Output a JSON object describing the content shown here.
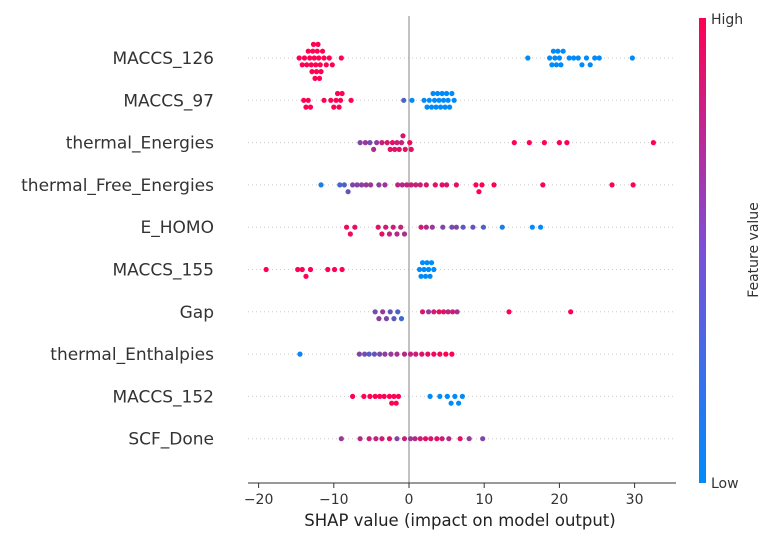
{
  "chart_data": {
    "type": "scatter",
    "subtype": "shap-beeswarm",
    "xlabel": "SHAP value (impact on model output)",
    "ylabel": "",
    "xlim": [
      -21.5,
      35.5
    ],
    "xticks": [
      -20,
      -10,
      0,
      10,
      20,
      30
    ],
    "zero_line": 0,
    "grid": "dotted horizontal row guides",
    "colorbar": {
      "title": "Feature value",
      "high_label": "High",
      "low_label": "Low",
      "low_color": "#008bfb",
      "high_color": "#ff0052"
    },
    "features": [
      {
        "name": "MACCS_126",
        "points": [
          {
            "x": -14.6,
            "c": 1
          },
          {
            "x": -14.2,
            "c": 1
          },
          {
            "x": -13.9,
            "c": 1
          },
          {
            "x": -13.6,
            "c": 1
          },
          {
            "x": -13.4,
            "c": 1
          },
          {
            "x": -13.2,
            "c": 1
          },
          {
            "x": -13.0,
            "c": 1
          },
          {
            "x": -12.9,
            "c": 1
          },
          {
            "x": -12.8,
            "c": 1
          },
          {
            "x": -12.7,
            "c": 1
          },
          {
            "x": -12.6,
            "c": 1
          },
          {
            "x": -12.5,
            "c": 1
          },
          {
            "x": -12.4,
            "c": 1
          },
          {
            "x": -12.3,
            "c": 1
          },
          {
            "x": -12.2,
            "c": 1
          },
          {
            "x": -12.1,
            "c": 1
          },
          {
            "x": -12.0,
            "c": 1
          },
          {
            "x": -11.9,
            "c": 1
          },
          {
            "x": -11.8,
            "c": 1
          },
          {
            "x": -11.7,
            "c": 1
          },
          {
            "x": -11.5,
            "c": 1
          },
          {
            "x": -11.3,
            "c": 1
          },
          {
            "x": -11.0,
            "c": 1
          },
          {
            "x": -10.6,
            "c": 1
          },
          {
            "x": -10.2,
            "c": 1
          },
          {
            "x": -9.0,
            "c": 1
          },
          {
            "x": 15.8,
            "c": 0
          },
          {
            "x": 18.7,
            "c": 0
          },
          {
            "x": 19.0,
            "c": 0
          },
          {
            "x": 19.2,
            "c": 0
          },
          {
            "x": 19.4,
            "c": 0
          },
          {
            "x": 19.6,
            "c": 0
          },
          {
            "x": 19.8,
            "c": 0
          },
          {
            "x": 20.0,
            "c": 0
          },
          {
            "x": 20.2,
            "c": 0
          },
          {
            "x": 20.5,
            "c": 0
          },
          {
            "x": 21.3,
            "c": 0
          },
          {
            "x": 21.9,
            "c": 0
          },
          {
            "x": 22.5,
            "c": 0
          },
          {
            "x": 23.0,
            "c": 0
          },
          {
            "x": 23.6,
            "c": 0
          },
          {
            "x": 24.1,
            "c": 0
          },
          {
            "x": 24.7,
            "c": 0
          },
          {
            "x": 25.3,
            "c": 0
          },
          {
            "x": 29.7,
            "c": 0
          }
        ]
      },
      {
        "name": "MACCS_97",
        "points": [
          {
            "x": -14.0,
            "c": 1
          },
          {
            "x": -13.7,
            "c": 1
          },
          {
            "x": -13.4,
            "c": 1
          },
          {
            "x": -13.1,
            "c": 1
          },
          {
            "x": -11.3,
            "c": 1
          },
          {
            "x": -10.4,
            "c": 1
          },
          {
            "x": -10.0,
            "c": 1
          },
          {
            "x": -9.7,
            "c": 1
          },
          {
            "x": -9.5,
            "c": 1
          },
          {
            "x": -9.3,
            "c": 1
          },
          {
            "x": -9.1,
            "c": 1
          },
          {
            "x": -8.9,
            "c": 1
          },
          {
            "x": -7.7,
            "c": 1
          },
          {
            "x": -0.7,
            "c": 0.3
          },
          {
            "x": 0.4,
            "c": 0
          },
          {
            "x": 2.0,
            "c": 0
          },
          {
            "x": 2.4,
            "c": 0
          },
          {
            "x": 2.7,
            "c": 0
          },
          {
            "x": 3.0,
            "c": 0
          },
          {
            "x": 3.2,
            "c": 0
          },
          {
            "x": 3.4,
            "c": 0
          },
          {
            "x": 3.6,
            "c": 0
          },
          {
            "x": 3.8,
            "c": 0
          },
          {
            "x": 4.0,
            "c": 0
          },
          {
            "x": 4.2,
            "c": 0
          },
          {
            "x": 4.4,
            "c": 0
          },
          {
            "x": 4.6,
            "c": 0
          },
          {
            "x": 4.8,
            "c": 0
          },
          {
            "x": 5.0,
            "c": 0
          },
          {
            "x": 5.2,
            "c": 0
          },
          {
            "x": 5.4,
            "c": 0
          },
          {
            "x": 5.7,
            "c": 0
          },
          {
            "x": 6.0,
            "c": 0
          }
        ]
      },
      {
        "name": "thermal_Energies",
        "points": [
          {
            "x": -6.5,
            "c": 0.5
          },
          {
            "x": -5.8,
            "c": 0.6
          },
          {
            "x": -5.2,
            "c": 0.45
          },
          {
            "x": -4.7,
            "c": 0.7
          },
          {
            "x": -4.3,
            "c": 0.55
          },
          {
            "x": -3.6,
            "c": 0.8
          },
          {
            "x": -2.9,
            "c": 0.85
          },
          {
            "x": -2.5,
            "c": 0.9
          },
          {
            "x": -2.2,
            "c": 0.9
          },
          {
            "x": -1.9,
            "c": 0.85
          },
          {
            "x": -1.6,
            "c": 0.8
          },
          {
            "x": -1.3,
            "c": 0.9
          },
          {
            "x": -1.0,
            "c": 0.75
          },
          {
            "x": -0.8,
            "c": 0.85
          },
          {
            "x": -0.5,
            "c": 0.9
          },
          {
            "x": 0.1,
            "c": 0.95
          },
          {
            "x": 0.3,
            "c": 0.9
          },
          {
            "x": 14.0,
            "c": 1
          },
          {
            "x": 16.0,
            "c": 1
          },
          {
            "x": 18.0,
            "c": 1
          },
          {
            "x": 20.0,
            "c": 1
          },
          {
            "x": 21.0,
            "c": 1
          },
          {
            "x": 32.5,
            "c": 1
          }
        ]
      },
      {
        "name": "thermal_Free_Energies",
        "points": [
          {
            "x": -11.7,
            "c": 0.1
          },
          {
            "x": -9.2,
            "c": 0.25
          },
          {
            "x": -8.6,
            "c": 0.3
          },
          {
            "x": -8.1,
            "c": 0.4
          },
          {
            "x": -7.5,
            "c": 0.5
          },
          {
            "x": -6.9,
            "c": 0.5
          },
          {
            "x": -6.3,
            "c": 0.55
          },
          {
            "x": -5.7,
            "c": 0.6
          },
          {
            "x": -5.1,
            "c": 0.6
          },
          {
            "x": -4.0,
            "c": 0.55
          },
          {
            "x": -3.2,
            "c": 0.6
          },
          {
            "x": -1.5,
            "c": 0.75
          },
          {
            "x": -0.9,
            "c": 0.7
          },
          {
            "x": -0.3,
            "c": 0.75
          },
          {
            "x": 0.3,
            "c": 0.8
          },
          {
            "x": 0.9,
            "c": 0.75
          },
          {
            "x": 1.5,
            "c": 0.8
          },
          {
            "x": 2.3,
            "c": 0.85
          },
          {
            "x": 3.5,
            "c": 0.9
          },
          {
            "x": 4.4,
            "c": 0.9
          },
          {
            "x": 5.0,
            "c": 0.85
          },
          {
            "x": 6.3,
            "c": 0.9
          },
          {
            "x": 8.9,
            "c": 1
          },
          {
            "x": 9.3,
            "c": 1
          },
          {
            "x": 9.7,
            "c": 1
          },
          {
            "x": 11.3,
            "c": 1
          },
          {
            "x": 17.8,
            "c": 1
          },
          {
            "x": 27.0,
            "c": 1
          },
          {
            "x": 29.8,
            "c": 1
          }
        ]
      },
      {
        "name": "E_HOMO",
        "points": [
          {
            "x": -8.3,
            "c": 0.95
          },
          {
            "x": -7.8,
            "c": 0.95
          },
          {
            "x": -7.2,
            "c": 0.9
          },
          {
            "x": -4.1,
            "c": 0.85
          },
          {
            "x": -3.6,
            "c": 0.9
          },
          {
            "x": -3.1,
            "c": 0.8
          },
          {
            "x": -2.6,
            "c": 0.75
          },
          {
            "x": -2.1,
            "c": 0.8
          },
          {
            "x": -1.6,
            "c": 0.7
          },
          {
            "x": -1.1,
            "c": 0.75
          },
          {
            "x": -0.6,
            "c": 0.65
          },
          {
            "x": 1.6,
            "c": 0.8
          },
          {
            "x": 2.3,
            "c": 0.7
          },
          {
            "x": 3.1,
            "c": 0.6
          },
          {
            "x": 4.5,
            "c": 0.5
          },
          {
            "x": 5.7,
            "c": 0.45
          },
          {
            "x": 6.3,
            "c": 0.5
          },
          {
            "x": 7.2,
            "c": 0.35
          },
          {
            "x": 8.5,
            "c": 0.4
          },
          {
            "x": 9.9,
            "c": 0.3
          },
          {
            "x": 12.4,
            "c": 0.1
          },
          {
            "x": 16.4,
            "c": 0
          },
          {
            "x": 17.5,
            "c": 0
          }
        ]
      },
      {
        "name": "MACCS_155",
        "points": [
          {
            "x": -19.0,
            "c": 1
          },
          {
            "x": -14.8,
            "c": 1
          },
          {
            "x": -14.2,
            "c": 1
          },
          {
            "x": -13.7,
            "c": 1
          },
          {
            "x": -13.1,
            "c": 1
          },
          {
            "x": -10.8,
            "c": 1
          },
          {
            "x": -9.9,
            "c": 1
          },
          {
            "x": -8.9,
            "c": 1
          },
          {
            "x": 1.4,
            "c": 0
          },
          {
            "x": 1.6,
            "c": 0
          },
          {
            "x": 1.8,
            "c": 0
          },
          {
            "x": 2.0,
            "c": 0
          },
          {
            "x": 2.2,
            "c": 0
          },
          {
            "x": 2.4,
            "c": 0
          },
          {
            "x": 2.6,
            "c": 0
          },
          {
            "x": 2.8,
            "c": 0
          },
          {
            "x": 3.0,
            "c": 0
          },
          {
            "x": 3.3,
            "c": 0
          }
        ]
      },
      {
        "name": "Gap",
        "points": [
          {
            "x": -4.5,
            "c": 0.45
          },
          {
            "x": -4.0,
            "c": 0.55
          },
          {
            "x": -3.5,
            "c": 0.6
          },
          {
            "x": -3.0,
            "c": 0.5
          },
          {
            "x": -2.5,
            "c": 0.4
          },
          {
            "x": -2.0,
            "c": 0.35
          },
          {
            "x": -1.5,
            "c": 0.3
          },
          {
            "x": -1.0,
            "c": 0.25
          },
          {
            "x": 1.8,
            "c": 0.85
          },
          {
            "x": 2.6,
            "c": 0.6
          },
          {
            "x": 3.3,
            "c": 0.8
          },
          {
            "x": 4.0,
            "c": 0.9
          },
          {
            "x": 4.6,
            "c": 0.85
          },
          {
            "x": 5.2,
            "c": 0.75
          },
          {
            "x": 5.8,
            "c": 0.8
          },
          {
            "x": 6.4,
            "c": 0.65
          },
          {
            "x": 13.3,
            "c": 1
          },
          {
            "x": 21.5,
            "c": 1
          }
        ]
      },
      {
        "name": "thermal_Enthalpies",
        "points": [
          {
            "x": -14.5,
            "c": 0.05
          },
          {
            "x": -6.6,
            "c": 0.5
          },
          {
            "x": -5.9,
            "c": 0.45
          },
          {
            "x": -5.3,
            "c": 0.35
          },
          {
            "x": -4.6,
            "c": 0.4
          },
          {
            "x": -3.9,
            "c": 0.5
          },
          {
            "x": -3.2,
            "c": 0.55
          },
          {
            "x": -2.4,
            "c": 0.6
          },
          {
            "x": -1.6,
            "c": 0.65
          },
          {
            "x": -0.6,
            "c": 0.7
          },
          {
            "x": 0.2,
            "c": 0.75
          },
          {
            "x": 0.9,
            "c": 0.8
          },
          {
            "x": 1.7,
            "c": 0.85
          },
          {
            "x": 2.5,
            "c": 0.9
          },
          {
            "x": 3.3,
            "c": 0.95
          },
          {
            "x": 4.1,
            "c": 0.95
          },
          {
            "x": 4.9,
            "c": 1
          },
          {
            "x": 5.7,
            "c": 1
          }
        ]
      },
      {
        "name": "MACCS_152",
        "points": [
          {
            "x": -7.5,
            "c": 1
          },
          {
            "x": -6.0,
            "c": 1
          },
          {
            "x": -5.2,
            "c": 1
          },
          {
            "x": -4.5,
            "c": 1
          },
          {
            "x": -3.9,
            "c": 1
          },
          {
            "x": -3.3,
            "c": 1
          },
          {
            "x": -2.6,
            "c": 1
          },
          {
            "x": -2.3,
            "c": 1
          },
          {
            "x": -2.0,
            "c": 1
          },
          {
            "x": -1.7,
            "c": 1
          },
          {
            "x": -1.4,
            "c": 1
          },
          {
            "x": 2.8,
            "c": 0
          },
          {
            "x": 4.1,
            "c": 0
          },
          {
            "x": 5.1,
            "c": 0
          },
          {
            "x": 5.6,
            "c": 0
          },
          {
            "x": 6.1,
            "c": 0
          },
          {
            "x": 6.6,
            "c": 0
          },
          {
            "x": 7.1,
            "c": 0
          }
        ]
      },
      {
        "name": "SCF_Done",
        "points": [
          {
            "x": -9.0,
            "c": 0.6
          },
          {
            "x": -6.5,
            "c": 0.7
          },
          {
            "x": -5.3,
            "c": 0.8
          },
          {
            "x": -4.4,
            "c": 0.75
          },
          {
            "x": -3.6,
            "c": 0.8
          },
          {
            "x": -2.6,
            "c": 0.85
          },
          {
            "x": -1.6,
            "c": 0.5
          },
          {
            "x": -0.6,
            "c": 0.75
          },
          {
            "x": 0.2,
            "c": 0.6
          },
          {
            "x": 0.8,
            "c": 0.7
          },
          {
            "x": 1.5,
            "c": 0.8
          },
          {
            "x": 2.2,
            "c": 0.9
          },
          {
            "x": 2.9,
            "c": 0.85
          },
          {
            "x": 3.7,
            "c": 0.9
          },
          {
            "x": 4.4,
            "c": 0.8
          },
          {
            "x": 5.3,
            "c": 0.7
          },
          {
            "x": 6.8,
            "c": 0.9
          },
          {
            "x": 8.0,
            "c": 0.6
          },
          {
            "x": 9.8,
            "c": 0.5
          }
        ]
      }
    ]
  }
}
